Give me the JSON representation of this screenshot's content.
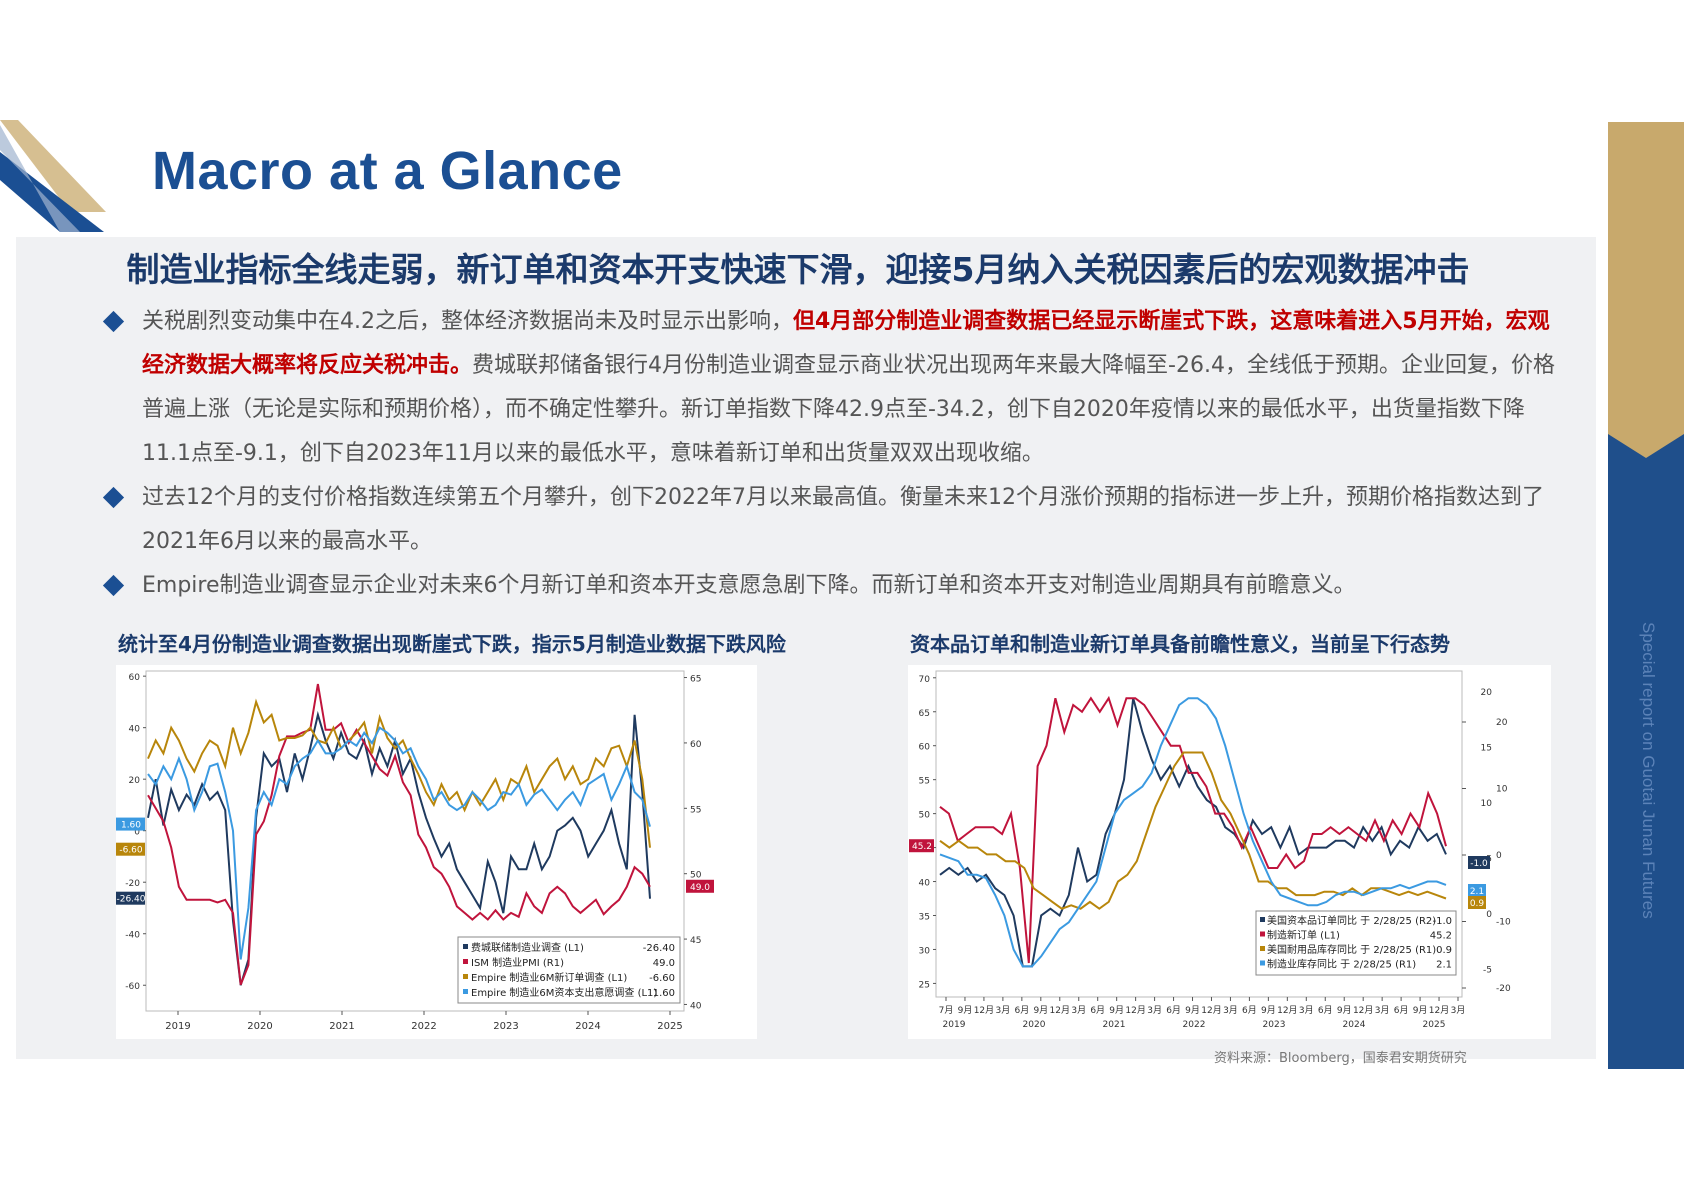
{
  "page": {
    "title": "Macro at a Glance",
    "side_text": "Special report on Guotai Junan Futures",
    "headline": "制造业指标全线走弱，新订单和资本开支快速下滑，迎接5月纳入关税因素后的宏观数据冲击",
    "bullets": [
      {
        "pre": "关税剧烈变动集中在4.2之后，整体经济数据尚未及时显示出影响，",
        "red": "但4月部分制造业调查数据已经显示断崖式下跌，这意味着进入5月开始，宏观经济数据大概率将反应关税冲击。",
        "post": "费城联邦储备银行4月份制造业调查显示商业状况出现两年来最大降幅至-26.4，全线低于预期。企业回复，价格普遍上涨（无论是实际和预期价格），而不确定性攀升。新订单指数下降42.9点至-34.2，创下自2020年疫情以来的最低水平，出货量指数下降11.1点至-9.1，创下自2023年11月以来的最低水平，意味着新订单和出货量双双出现收缩。"
      },
      {
        "pre": "过去12个月的支付价格指数连续第五个月攀升，创下2022年7月以来最高值。衡量未来12个月涨价预期的指标进一步上升，预期价格指数达到了2021年6月以来的最高水平。",
        "red": "",
        "post": ""
      },
      {
        "pre": "Empire制造业调查显示企业对未来6个月新订单和资本开支意愿急剧下降。而新订单和资本开支对制造业周期具有前瞻意义。",
        "red": "",
        "post": ""
      }
    ],
    "chart1_title": "统计至4月份制造业调查数据出现断崖式下跌，指示5月制造业数据下跌风险",
    "chart2_title": "资本品订单和制造业新订单具备前瞻性意义，当前呈下行态势",
    "source": "资料来源：Bloomberg，国泰君安期货研究",
    "colors": {
      "brand_blue": "#1b4f93",
      "gold": "#c8a96c",
      "red": "#c00000"
    }
  },
  "chart_data": [
    {
      "type": "line",
      "x_labels": [
        "2019",
        "2020",
        "2021",
        "2022",
        "2023",
        "2024",
        "2025"
      ],
      "left_ticks": [
        "60",
        "40",
        "20",
        "0",
        "-20",
        "-40",
        "-60"
      ],
      "right_ticks": [
        "65",
        "60",
        "55",
        "50",
        "45",
        "40"
      ],
      "ylim_left": [
        -70,
        62
      ],
      "ylim_right": [
        39.5,
        65.5
      ],
      "legend": [
        {
          "name": "费城联储制造业调查 (L1)",
          "value": "-26.40",
          "color": "#1f3a5f"
        },
        {
          "name": "ISM 制造业PMI (R1)",
          "value": "49.0",
          "color": "#c0143c"
        },
        {
          "name": "Empire 制造业6M新订单调查 (L1)",
          "value": "-6.60",
          "color": "#b8860b"
        },
        {
          "name": "Empire 制造业6M资本支出意愿调查 (L1)",
          "value": "1.60",
          "color": "#3b9ae1"
        }
      ],
      "end_labels": [
        {
          "text": "1.60",
          "color": "#3b9ae1"
        },
        {
          "text": "-6.60",
          "color": "#b8860b"
        },
        {
          "text": "-26.40",
          "color": "#1f3a5f"
        },
        {
          "text": "49.0",
          "color": "#c0143c"
        }
      ],
      "series": [
        {
          "name": "费城联储制造业调查 (L1)",
          "axis": "left",
          "color": "#1f3a5f",
          "values": [
            5,
            20,
            2,
            16,
            8,
            14,
            10,
            18,
            12,
            15,
            8,
            -35,
            -60,
            -50,
            5,
            30,
            25,
            28,
            15,
            30,
            20,
            32,
            45,
            35,
            28,
            38,
            30,
            28,
            35,
            22,
            32,
            25,
            35,
            22,
            28,
            15,
            5,
            -3,
            -10,
            -5,
            -15,
            -20,
            -25,
            -30,
            -12,
            -20,
            -32,
            -10,
            -15,
            -15,
            -5,
            -15,
            -10,
            0,
            2,
            5,
            0,
            -10,
            -5,
            0,
            8,
            -5,
            -15,
            45,
            15,
            -26.4
          ]
        },
        {
          "name": "ISM 制造业PMI (R1)",
          "axis": "right",
          "color": "#c0143c",
          "values": [
            56,
            55,
            54,
            52,
            49,
            48,
            48,
            48,
            48,
            47.8,
            48,
            47,
            41.5,
            43,
            53,
            54,
            56,
            59,
            60.5,
            60.5,
            60.8,
            61,
            64.5,
            61,
            61,
            61.5,
            60,
            61,
            60,
            59,
            58,
            57.5,
            59,
            57,
            56,
            53,
            52,
            50.5,
            50,
            49,
            47.5,
            47,
            46.5,
            47,
            46.5,
            47.2,
            46.5,
            47,
            46.7,
            48.5,
            47.5,
            47,
            48.5,
            49,
            48.5,
            47.5,
            47,
            47.5,
            48,
            46.9,
            47.5,
            48,
            49,
            50.5,
            50,
            49
          ]
        },
        {
          "name": "Empire 制造业6M新订单调查 (L1)",
          "axis": "left",
          "color": "#b8860b",
          "values": [
            28,
            35,
            30,
            40,
            35,
            28,
            23,
            30,
            35,
            33,
            25,
            40,
            30,
            38,
            50,
            42,
            45,
            35,
            36,
            36,
            37,
            40,
            35,
            34,
            40,
            32,
            35,
            38,
            42,
            30,
            44,
            36,
            32,
            35,
            28,
            22,
            15,
            10,
            18,
            12,
            15,
            8,
            15,
            10,
            15,
            20,
            12,
            20,
            18,
            25,
            15,
            20,
            25,
            28,
            20,
            25,
            18,
            20,
            28,
            25,
            32,
            33,
            25,
            35,
            20,
            -6.6
          ]
        },
        {
          "name": "Empire 制造业6M资本支出意愿调查 (L1)",
          "axis": "left",
          "color": "#3b9ae1",
          "values": [
            22,
            18,
            25,
            20,
            28,
            20,
            8,
            15,
            25,
            26,
            15,
            0,
            -50,
            -30,
            8,
            15,
            10,
            20,
            18,
            25,
            28,
            30,
            35,
            30,
            30,
            32,
            35,
            33,
            38,
            34,
            40,
            38,
            35,
            30,
            32,
            25,
            20,
            12,
            15,
            10,
            8,
            10,
            15,
            12,
            8,
            10,
            15,
            14,
            18,
            10,
            14,
            16,
            12,
            8,
            12,
            15,
            10,
            18,
            20,
            22,
            12,
            18,
            25,
            15,
            12,
            1.6
          ]
        }
      ]
    },
    {
      "type": "line",
      "x_labels": [
        "7月",
        "9月",
        "12月",
        "3月",
        "6月",
        "9月",
        "12月",
        "3月",
        "6月",
        "9月",
        "12月",
        "3月",
        "6月",
        "9月",
        "12月",
        "3月",
        "6月",
        "9月",
        "12月",
        "3月",
        "6月",
        "9月",
        "12月",
        "3月",
        "6月",
        "9月",
        "12月",
        "3月"
      ],
      "year_labels": [
        "2019",
        "2020",
        "2021",
        "2022",
        "2023",
        "2024",
        "2025"
      ],
      "left_ticks": [
        "70",
        "65",
        "60",
        "55",
        "50",
        "45",
        "40",
        "35",
        "30",
        "25"
      ],
      "right_ticks_r1": [
        "20",
        "15",
        "10",
        "5",
        "0",
        "-5"
      ],
      "right_ticks_r2": [
        "20",
        "10",
        "0",
        "-10",
        "-20"
      ],
      "ylim_left": [
        23,
        71
      ],
      "legend": [
        {
          "name": "美国资本品订单同比 于 2/28/25 (R2)",
          "value": "-1.0",
          "color": "#1f3a5f"
        },
        {
          "name": "制造新订单 (L1)",
          "value": "45.2",
          "color": "#c0143c"
        },
        {
          "name": "美国耐用品库存同比 于 2/28/25 (R1)",
          "value": "0.9",
          "color": "#b8860b"
        },
        {
          "name": "制造业库存同比 于 2/28/25 (R1)",
          "value": "2.1",
          "color": "#3b9ae1"
        }
      ],
      "end_labels": [
        {
          "text": "45.2",
          "color": "#c0143c"
        },
        {
          "text": "-1.0",
          "color": "#1f3a5f"
        },
        {
          "text": "2.1",
          "color": "#3b9ae1"
        },
        {
          "text": "0.9",
          "color": "#b8860b"
        }
      ],
      "series": [
        {
          "name": "美国资本品订单同比 于 2/28/25 (R2)",
          "color": "#1f3a5f",
          "values": [
            41,
            42,
            41,
            42,
            40,
            41,
            39,
            38,
            35,
            27.5,
            27.5,
            35,
            36,
            35,
            38,
            45,
            40,
            41,
            47,
            50,
            55,
            67,
            62,
            58,
            55,
            57,
            54,
            57,
            54,
            52,
            51,
            48,
            47,
            45,
            49,
            47,
            48,
            45,
            48,
            44,
            45,
            45,
            45,
            46,
            46,
            45,
            48,
            46,
            48,
            44,
            46,
            45,
            48,
            46,
            47,
            44
          ]
        },
        {
          "name": "制造新订单 (L1)",
          "color": "#c0143c",
          "values": [
            51,
            50,
            46,
            47,
            48,
            48,
            48,
            47,
            50,
            42,
            28,
            57,
            60,
            67,
            62,
            66,
            65,
            67,
            65,
            67,
            63,
            67,
            67,
            66,
            64,
            62,
            60,
            60,
            56,
            56,
            54,
            50,
            50,
            48,
            45,
            48,
            45,
            42,
            42,
            44,
            42,
            43,
            47,
            47,
            48,
            47,
            48,
            47,
            46,
            49,
            46,
            49,
            47,
            50,
            48,
            53,
            50,
            45.2
          ]
        },
        {
          "name": "美国耐用品库存同比 于 2/28/25 (R1)",
          "color": "#b8860b",
          "values": [
            46,
            45,
            46,
            45,
            45,
            44,
            44,
            43,
            43,
            42,
            39,
            38,
            37,
            36,
            36.5,
            36,
            37,
            36,
            37,
            40,
            41,
            43,
            47,
            51,
            54,
            57,
            59,
            59,
            59,
            56,
            52,
            50,
            47,
            44,
            40,
            40,
            39,
            39,
            38,
            38,
            38,
            38.5,
            38.5,
            38,
            39,
            38,
            39,
            39,
            38.5,
            38,
            38.5,
            38,
            38.5,
            38,
            37.5
          ]
        },
        {
          "name": "制造业库存同比 于 2/28/25 (R1)",
          "color": "#3b9ae1",
          "values": [
            44,
            43.5,
            43,
            41,
            41,
            40.5,
            38,
            35,
            30,
            27.5,
            27.5,
            29,
            31,
            33,
            34,
            36,
            38,
            40,
            45,
            50,
            52,
            53,
            54,
            56,
            60,
            63,
            66,
            67,
            67,
            66,
            64,
            60,
            55,
            50,
            46,
            43,
            40,
            38,
            37.5,
            37,
            36.5,
            36.5,
            37,
            38,
            38.5,
            38.5,
            38,
            38.5,
            39,
            39,
            39.5,
            39,
            39.5,
            40,
            40,
            39.5
          ]
        }
      ]
    }
  ]
}
